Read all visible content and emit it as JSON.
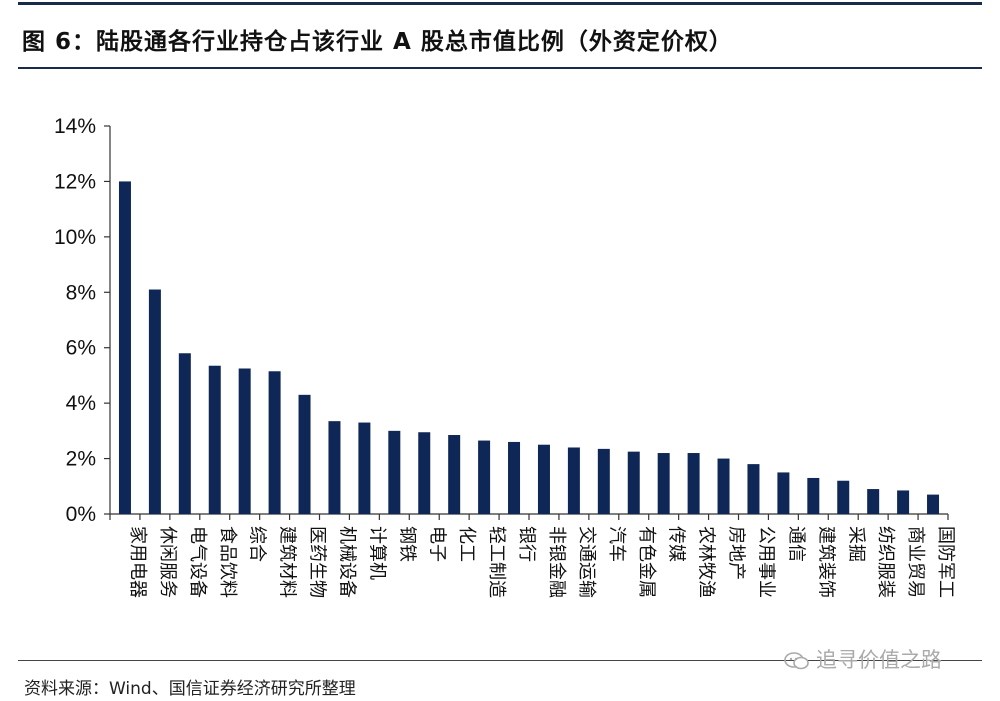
{
  "title": "图 6：陆股通各行业持仓占该行业 A 股总市值比例（外资定价权）",
  "source": "资料来源：Wind、国信证券经济研究所整理",
  "watermark": "追寻价值之路",
  "chart_data": {
    "type": "bar",
    "title": "",
    "xlabel": "",
    "ylabel": "",
    "ylim": [
      0,
      14
    ],
    "yticks": [
      "0%",
      "2%",
      "4%",
      "6%",
      "8%",
      "10%",
      "12%",
      "14%"
    ],
    "grid": false,
    "bar_color": "#0f2756",
    "categories": [
      "家用电器",
      "休闲服务",
      "电气设备",
      "食品饮料",
      "综合",
      "建筑材料",
      "医药生物",
      "机械设备",
      "计算机",
      "钢铁",
      "电子",
      "化工",
      "轻工制造",
      "银行",
      "非银金融",
      "交通运输",
      "汽车",
      "有色金属",
      "传媒",
      "农林牧渔",
      "房地产",
      "公用事业",
      "通信",
      "建筑装饰",
      "采掘",
      "纺织服装",
      "商业贸易",
      "国防军工"
    ],
    "values": [
      12.0,
      8.1,
      5.8,
      5.35,
      5.25,
      5.15,
      4.3,
      3.35,
      3.3,
      3.0,
      2.95,
      2.85,
      2.65,
      2.6,
      2.5,
      2.4,
      2.35,
      2.25,
      2.2,
      2.2,
      2.0,
      1.8,
      1.5,
      1.3,
      1.2,
      0.9,
      0.85,
      0.7
    ]
  }
}
